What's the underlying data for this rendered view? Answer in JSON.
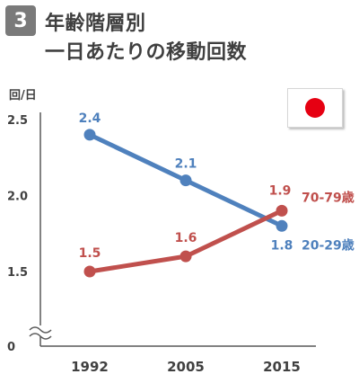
{
  "header": {
    "number": "3",
    "title_line1": "年齢階層別",
    "title_line2": "一日あたりの移動回数"
  },
  "flag_icon": "japan-flag-icon",
  "colors": {
    "series_young": "#4f81bd",
    "series_old": "#c0504d",
    "axis": "#595959"
  },
  "chart_data": {
    "type": "line",
    "ylabel": "回/日",
    "x": [
      "1992",
      "2005",
      "2015"
    ],
    "yticks": [
      "2.5",
      "2.0",
      "1.5",
      "0"
    ],
    "ylim": [
      1.0,
      2.5
    ],
    "axis_break": true,
    "grid": false,
    "series": [
      {
        "name": "20-29歳",
        "values": [
          2.4,
          2.1,
          1.8
        ],
        "labels": [
          "2.4",
          "2.1",
          "1.8"
        ],
        "color": "#4f81bd"
      },
      {
        "name": "70-79歳",
        "values": [
          1.5,
          1.6,
          1.9
        ],
        "labels": [
          "1.5",
          "1.6",
          "1.9"
        ],
        "color": "#c0504d"
      }
    ]
  }
}
